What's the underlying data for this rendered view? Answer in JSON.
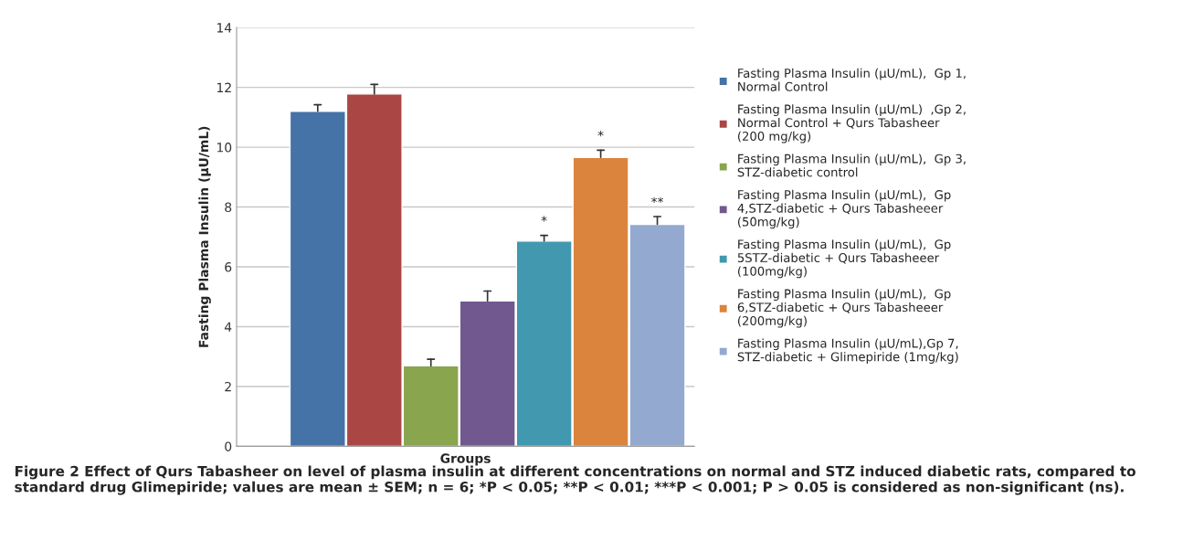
{
  "chart_data": {
    "type": "bar",
    "categories": [
      null
    ],
    "xlabel": "Groups",
    "ylabel": "Fasting Plasma Insulin (µU/mL)",
    "ylim": [
      0,
      14
    ],
    "yticks": [
      0,
      2,
      4,
      6,
      8,
      10,
      12,
      14
    ],
    "grid": "y",
    "legend": "right",
    "series": [
      {
        "name": "Fasting Plasma Insulin (µU/mL),  Gp 1,\nNormal Control",
        "color": "#4572a7",
        "values": [
          11.2
        ],
        "errors": [
          [
            11.2,
            11.42
          ]
        ]
      },
      {
        "name": "Fasting Plasma Insulin (µU/mL)  ,Gp 2,\nNormal Control + Qurs Tabasheer\n(200 mg/kg)",
        "color": "#aa4643",
        "values": [
          11.78
        ],
        "errors": [
          [
            11.78,
            12.1
          ]
        ]
      },
      {
        "name": "Fasting Plasma Insulin (µU/mL),  Gp 3,\nSTZ-diabetic control",
        "color": "#89a54e",
        "values": [
          2.69
        ],
        "errors": [
          [
            2.69,
            2.91
          ]
        ]
      },
      {
        "name": "Fasting Plasma Insulin (µU/mL),  Gp\n4,STZ-diabetic + Qurs Tabasheeer\n(50mg/kg)",
        "color": "#71588f",
        "values": [
          4.86
        ],
        "errors": [
          [
            4.86,
            5.19
          ]
        ]
      },
      {
        "name": "Fasting Plasma Insulin (µU/mL),  Gp\n5STZ-diabetic + Qurs Tabasheeer\n(100mg/kg)",
        "color": "#4198af",
        "values": [
          6.86
        ],
        "errors": [
          [
            6.86,
            7.05
          ]
        ],
        "value_labels": [
          "*"
        ]
      },
      {
        "name": "Fasting Plasma Insulin (µU/mL),  Gp\n6,STZ-diabetic + Qurs Tabasheeer\n(200mg/kg)",
        "color": "#db843d",
        "values": [
          9.66
        ],
        "errors": [
          [
            9.66,
            9.9
          ]
        ],
        "value_labels": [
          "*"
        ]
      },
      {
        "name": "Fasting Plasma Insulin (µU/mL),Gp 7,\nSTZ-diabetic + Glimepiride (1mg/kg)",
        "color": "#93a9cf",
        "values": [
          7.42
        ],
        "errors": [
          [
            7.42,
            7.68
          ]
        ],
        "value_labels": [
          "**"
        ]
      }
    ],
    "annotations": [
      "Figure 2 Effect of Qurs Tabasheer on level of plasma insulin at different concentrations on normal and STZ induced diabetic rats, compared to standard drug Glimepiride; values are mean ± SEM; n = 6; *P < 0.05; **P < 0.01; ***P < 0.001; P > 0.05 is considered as non-significant (ns)."
    ]
  }
}
